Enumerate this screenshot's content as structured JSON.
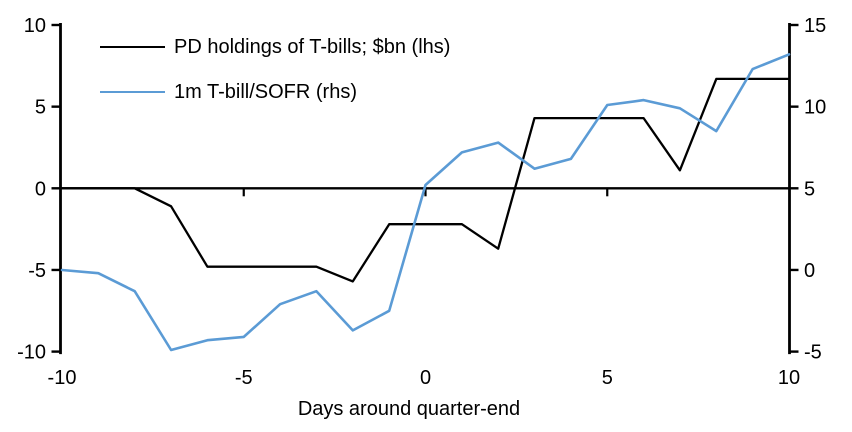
{
  "chart_data": {
    "type": "line",
    "title": "",
    "xlabel": "Days around quarter-end",
    "grid": false,
    "legend_position": "top-left-inside",
    "x": [
      -10,
      -9,
      -8,
      -7,
      -6,
      -5,
      -4,
      -3,
      -2,
      -1,
      0,
      1,
      2,
      3,
      4,
      5,
      6,
      7,
      8,
      9,
      10
    ],
    "x_ticks": [
      -10,
      -5,
      0,
      5,
      10
    ],
    "left_axis": {
      "min": -10,
      "max": 10,
      "ticks": [
        10,
        5,
        0,
        -5,
        -10
      ]
    },
    "right_axis": {
      "min": -5,
      "max": 15,
      "ticks": [
        15,
        10,
        5,
        0,
        -5
      ]
    },
    "series": [
      {
        "name": "PD holdings of T-bills; $bn (lhs)",
        "axis": "left",
        "color": "#000000",
        "width": 2.3,
        "values": [
          0,
          0,
          0,
          -1.1,
          -4.8,
          -4.8,
          -4.8,
          -4.8,
          -5.7,
          -2.2,
          -2.2,
          -2.2,
          -3.7,
          4.3,
          4.3,
          4.3,
          4.3,
          1.1,
          6.7,
          6.7,
          6.7
        ]
      },
      {
        "name": "1m T-bill/SOFR (rhs)",
        "axis": "right",
        "color": "#5B9BD5",
        "width": 2.6,
        "values": [
          0,
          -0.2,
          -1.3,
          -4.9,
          -4.3,
          -4.1,
          -2.1,
          -1.3,
          -3.7,
          -2.5,
          5.2,
          7.2,
          7.8,
          6.2,
          6.8,
          10.1,
          10.4,
          9.9,
          8.5,
          12.3,
          13.2
        ]
      }
    ]
  }
}
